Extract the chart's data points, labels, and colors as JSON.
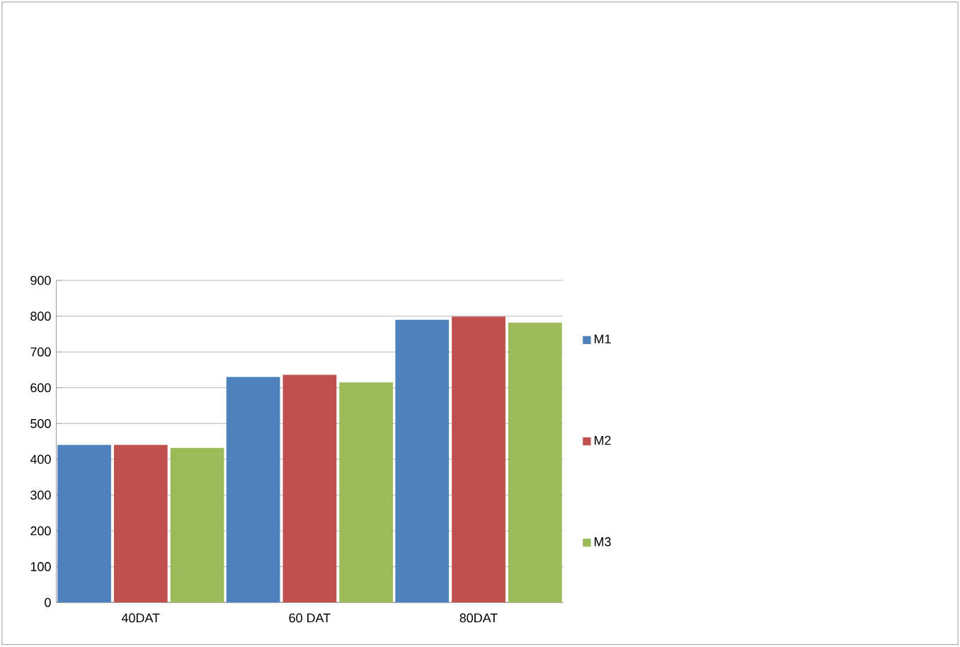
{
  "chart_data": {
    "type": "bar",
    "categories": [
      "40DAT",
      "60 DAT",
      "80DAT"
    ],
    "series": [
      {
        "name": "M1",
        "color": "#4f81bd",
        "values": [
          440,
          630,
          790
        ]
      },
      {
        "name": "M2",
        "color": "#c0504d",
        "values": [
          440,
          636,
          799
        ]
      },
      {
        "name": "M3",
        "color": "#9bbb59",
        "values": [
          432,
          615,
          782
        ]
      }
    ],
    "ylim": [
      0,
      900
    ],
    "yticks": [
      0,
      100,
      200,
      300,
      400,
      500,
      600,
      700,
      800,
      900
    ],
    "grid": "y",
    "legend": "right"
  }
}
